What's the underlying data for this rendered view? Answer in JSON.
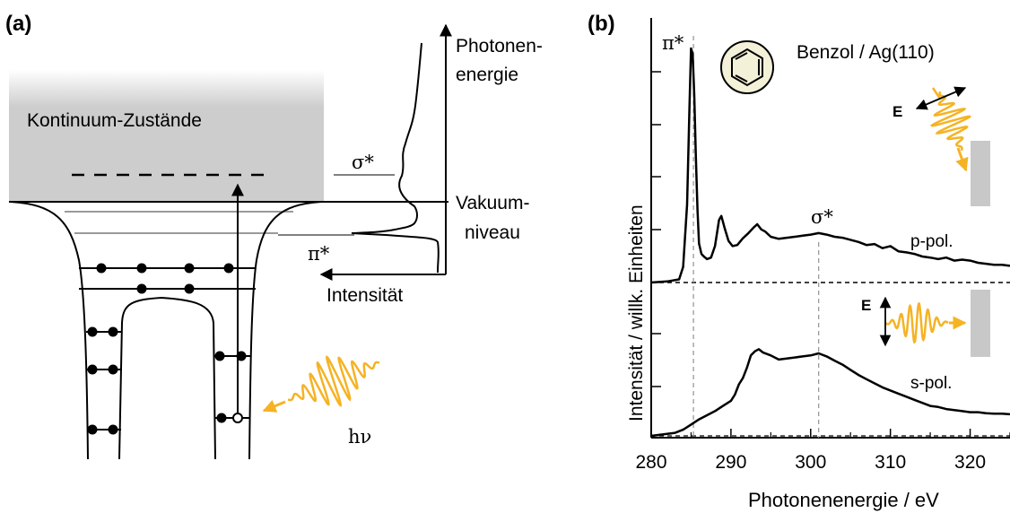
{
  "panel_a": {
    "label": "(a)",
    "continuum_label": "Kontinuum-Zustände",
    "axis_energy_label_line1": "Photonen-",
    "axis_energy_label_line2": "energie",
    "axis_intensity_label": "Intensität",
    "sigma_label": "σ*",
    "pi_label": "π*",
    "vacuum_label_line1": "Vakuum-",
    "vacuum_label_line2": "niveau",
    "photon_label": "hν",
    "photon_color": "#F5B324",
    "continuum_color": "#CDCDCD"
  },
  "panel_b": {
    "label": "(b)",
    "sample_label": "Benzol / Ag(110)",
    "pi_label": "π*",
    "sigma_label": "σ*",
    "ylabel": "Intensität / willk. Einheiten",
    "xlabel": "Photonenenergie / eV",
    "p_pol_label": "p-pol.",
    "s_pol_label": "s-pol.",
    "efield_label_1": "E",
    "efield_label_2": "E",
    "benzene_color": "#F3F1D8",
    "pulse_color": "#F5B324",
    "surface_color": "#C8C8C8"
  },
  "chart_data": {
    "type": "line",
    "title": "Benzol / Ag(110)",
    "xlabel": "Photonenenergie / eV",
    "ylabel": "Intensität / willk. Einheiten",
    "xlim": [
      280,
      325
    ],
    "xticks": [
      "280",
      "290",
      "300",
      "310",
      "320"
    ],
    "tick_values": [
      280,
      290,
      300,
      310,
      320
    ],
    "grid": false,
    "series": [
      {
        "name": "p-pol.",
        "x": [
          280.0,
          282.0,
          283.5,
          284.0,
          284.5,
          284.8,
          285.0,
          285.2,
          285.4,
          285.6,
          285.8,
          286.0,
          286.3,
          286.6,
          287.0,
          287.5,
          288.0,
          288.5,
          288.8,
          289.2,
          289.7,
          290.2,
          290.8,
          291.5,
          292.2,
          292.8,
          293.3,
          293.8,
          294.3,
          295.0,
          296.0,
          297.0,
          298.0,
          299.0,
          300.0,
          301.0,
          302.0,
          303.0,
          304.0,
          305.0,
          306.0,
          307.0,
          308.0,
          309.0,
          310.0,
          311.0,
          312.0,
          313.0,
          314.0,
          315.0,
          316.0,
          317.0,
          318.0,
          319.0,
          320.0,
          321.0,
          322.0,
          323.0,
          324.0,
          325.0
        ],
        "y": [
          0.0,
          0.02,
          0.06,
          0.3,
          1.5,
          3.4,
          4.5,
          4.4,
          3.6,
          2.4,
          1.4,
          0.75,
          0.55,
          0.5,
          0.45,
          0.48,
          0.7,
          1.2,
          1.28,
          1.05,
          0.8,
          0.7,
          0.72,
          0.85,
          0.95,
          1.05,
          1.12,
          1.02,
          0.98,
          0.88,
          0.84,
          0.86,
          0.88,
          0.9,
          0.92,
          0.95,
          0.92,
          0.88,
          0.86,
          0.82,
          0.78,
          0.72,
          0.74,
          0.66,
          0.7,
          0.6,
          0.58,
          0.55,
          0.5,
          0.48,
          0.45,
          0.48,
          0.42,
          0.44,
          0.42,
          0.38,
          0.36,
          0.34,
          0.34,
          0.32
        ]
      },
      {
        "name": "s-pol.",
        "x": [
          280.0,
          281.0,
          282.0,
          283.0,
          284.0,
          285.0,
          286.0,
          287.0,
          288.0,
          289.0,
          290.0,
          290.5,
          291.0,
          291.5,
          292.0,
          292.5,
          293.0,
          293.5,
          294.0,
          295.0,
          296.0,
          297.0,
          298.0,
          299.0,
          300.0,
          301.0,
          302.0,
          303.0,
          304.0,
          305.0,
          306.0,
          307.0,
          308.0,
          309.0,
          310.0,
          311.0,
          312.0,
          313.0,
          314.0,
          315.0,
          316.0,
          317.0,
          318.0,
          319.0,
          320.0,
          321.0,
          322.0,
          323.0,
          324.0,
          325.0
        ],
        "y": [
          0.0,
          0.05,
          0.1,
          0.15,
          0.3,
          0.55,
          0.8,
          1.0,
          1.2,
          1.45,
          1.7,
          2.0,
          2.5,
          2.8,
          3.3,
          3.9,
          4.1,
          4.2,
          4.05,
          3.9,
          3.7,
          3.75,
          3.8,
          3.85,
          3.9,
          4.0,
          3.85,
          3.65,
          3.45,
          3.2,
          2.95,
          2.75,
          2.55,
          2.35,
          2.2,
          2.05,
          1.9,
          1.75,
          1.6,
          1.45,
          1.4,
          1.3,
          1.25,
          1.2,
          1.15,
          1.15,
          1.1,
          1.08,
          1.08,
          1.05
        ]
      }
    ]
  }
}
